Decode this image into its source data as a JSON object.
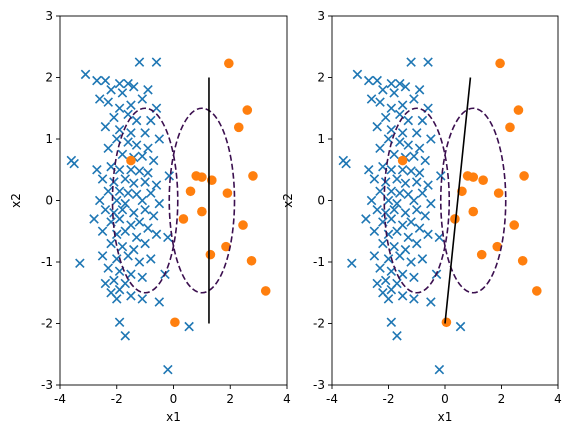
{
  "chart_data": [
    {
      "type": "scatter",
      "xlabel": "x1",
      "ylabel": "x2",
      "xlim": [
        -4,
        4
      ],
      "ylim": [
        -3,
        3
      ],
      "xticks": [
        "-4",
        "-2",
        "0",
        "2",
        "4"
      ],
      "yticks": [
        "-3",
        "-2",
        "-1",
        "0",
        "1",
        "2",
        "3"
      ],
      "grid": false,
      "colors": {
        "class_x": "#1f77b4",
        "class_o": "#ff7f0e",
        "contour": "#3b0f4f",
        "boundary": "#000000"
      },
      "series": [
        {
          "marker": "x",
          "color": "#1f77b4",
          "points": [
            [
              -3.1,
              2.05
            ],
            [
              -1.2,
              2.25
            ],
            [
              -0.6,
              2.25
            ],
            [
              -2.7,
              1.95
            ],
            [
              -2.4,
              1.95
            ],
            [
              -1.9,
              1.9
            ],
            [
              -1.6,
              1.9
            ],
            [
              -1.4,
              1.85
            ],
            [
              -2.2,
              1.8
            ],
            [
              -1.8,
              1.75
            ],
            [
              -0.9,
              1.8
            ],
            [
              -2.6,
              1.65
            ],
            [
              -2.3,
              1.6
            ],
            [
              -1.1,
              1.65
            ],
            [
              -1.9,
              1.5
            ],
            [
              -1.5,
              1.55
            ],
            [
              -0.6,
              1.5
            ],
            [
              -2.1,
              1.35
            ],
            [
              -1.6,
              1.4
            ],
            [
              -1.3,
              1.3
            ],
            [
              -0.8,
              1.3
            ],
            [
              -2.4,
              1.2
            ],
            [
              -1.9,
              1.15
            ],
            [
              -1.5,
              1.1
            ],
            [
              -1.0,
              1.1
            ],
            [
              -0.5,
              1.0
            ],
            [
              -2.0,
              1.0
            ],
            [
              -1.6,
              0.95
            ],
            [
              -1.3,
              0.9
            ],
            [
              -2.3,
              0.85
            ],
            [
              -0.9,
              0.85
            ],
            [
              -3.6,
              0.65
            ],
            [
              -3.5,
              0.6
            ],
            [
              -1.8,
              0.75
            ],
            [
              -1.4,
              0.7
            ],
            [
              -1.1,
              0.72
            ],
            [
              -0.7,
              0.65
            ],
            [
              -2.7,
              0.5
            ],
            [
              -2.2,
              0.55
            ],
            [
              -1.9,
              0.5
            ],
            [
              -1.5,
              0.5
            ],
            [
              -1.2,
              0.48
            ],
            [
              -0.9,
              0.45
            ],
            [
              -2.5,
              0.35
            ],
            [
              -2.1,
              0.3
            ],
            [
              -1.7,
              0.35
            ],
            [
              -1.4,
              0.28
            ],
            [
              -1.0,
              0.3
            ],
            [
              -0.6,
              0.25
            ],
            [
              -2.3,
              0.15
            ],
            [
              -1.9,
              0.15
            ],
            [
              -1.6,
              0.12
            ],
            [
              -1.3,
              0.1
            ],
            [
              -0.8,
              0.12
            ],
            [
              -2.6,
              0.0
            ],
            [
              -2.0,
              0.0
            ],
            [
              -1.7,
              -0.05
            ],
            [
              -1.1,
              0.0
            ],
            [
              -0.5,
              -0.05
            ],
            [
              -2.4,
              -0.15
            ],
            [
              -2.1,
              -0.2
            ],
            [
              -1.8,
              -0.15
            ],
            [
              -1.4,
              -0.2
            ],
            [
              -1.0,
              -0.15
            ],
            [
              -0.7,
              -0.25
            ],
            [
              -2.8,
              -0.3
            ],
            [
              -2.2,
              -0.35
            ],
            [
              -1.9,
              -0.3
            ],
            [
              -1.5,
              -0.4
            ],
            [
              -1.2,
              -0.35
            ],
            [
              -0.9,
              -0.45
            ],
            [
              -2.5,
              -0.5
            ],
            [
              -2.0,
              -0.55
            ],
            [
              -1.7,
              -0.5
            ],
            [
              -1.3,
              -0.6
            ],
            [
              -0.6,
              -0.55
            ],
            [
              -2.2,
              -0.7
            ],
            [
              -1.8,
              -0.75
            ],
            [
              -1.4,
              -0.8
            ],
            [
              -1.0,
              -0.7
            ],
            [
              -2.5,
              -0.9
            ],
            [
              -2.0,
              -0.95
            ],
            [
              -1.6,
              -0.9
            ],
            [
              -1.2,
              -1.0
            ],
            [
              -0.8,
              -0.95
            ],
            [
              -3.3,
              -1.02
            ],
            [
              -2.3,
              -1.1
            ],
            [
              -1.9,
              -1.15
            ],
            [
              -1.5,
              -1.2
            ],
            [
              -1.1,
              -1.25
            ],
            [
              -2.1,
              -1.3
            ],
            [
              -1.7,
              -1.35
            ],
            [
              -2.4,
              -1.35
            ],
            [
              -2.2,
              -1.5
            ],
            [
              -1.9,
              -1.45
            ],
            [
              -2.0,
              -1.6
            ],
            [
              -1.5,
              -1.55
            ],
            [
              -1.1,
              -1.6
            ],
            [
              -0.5,
              -1.65
            ],
            [
              -1.9,
              -1.98
            ],
            [
              -1.7,
              -2.2
            ],
            [
              0.55,
              -2.05
            ],
            [
              -0.2,
              -2.75
            ],
            [
              -0.3,
              -1.2
            ],
            [
              -0.2,
              -0.6
            ],
            [
              -0.15,
              0.4
            ]
          ]
        },
        {
          "marker": "o",
          "color": "#ff7f0e",
          "points": [
            [
              1.95,
              2.23
            ],
            [
              2.6,
              1.47
            ],
            [
              2.3,
              1.19
            ],
            [
              -1.5,
              0.65
            ],
            [
              0.8,
              0.4
            ],
            [
              1.0,
              0.38
            ],
            [
              1.35,
              0.33
            ],
            [
              2.8,
              0.4
            ],
            [
              0.6,
              0.15
            ],
            [
              1.9,
              0.12
            ],
            [
              1.0,
              -0.18
            ],
            [
              2.45,
              -0.4
            ],
            [
              0.35,
              -0.3
            ],
            [
              1.85,
              -0.75
            ],
            [
              1.3,
              -0.88
            ],
            [
              2.75,
              -0.98
            ],
            [
              3.25,
              -1.47
            ],
            [
              0.05,
              -1.98
            ]
          ]
        }
      ],
      "contours": [
        {
          "center": [
            -1.0,
            0.0
          ],
          "rx": 1.15,
          "ry": 1.5
        },
        {
          "center": [
            1.0,
            0.0
          ],
          "rx": 1.15,
          "ry": 1.5
        }
      ],
      "boundary": [
        [
          1.25,
          2.0
        ],
        [
          1.25,
          -2.0
        ]
      ]
    },
    {
      "type": "scatter",
      "xlabel": "x1",
      "ylabel": "x2",
      "xlim": [
        -4,
        4
      ],
      "ylim": [
        -3,
        3
      ],
      "xticks": [
        "-4",
        "-2",
        "0",
        "2",
        "4"
      ],
      "yticks": [
        "-3",
        "-2",
        "-1",
        "0",
        "1",
        "2",
        "3"
      ],
      "grid": false,
      "colors": {
        "class_x": "#1f77b4",
        "class_o": "#ff7f0e",
        "contour": "#3b0f4f",
        "boundary": "#000000"
      },
      "series": [
        {
          "marker": "x",
          "color": "#1f77b4",
          "points": [
            [
              -3.1,
              2.05
            ],
            [
              -1.2,
              2.25
            ],
            [
              -0.6,
              2.25
            ],
            [
              -2.7,
              1.95
            ],
            [
              -2.4,
              1.95
            ],
            [
              -1.9,
              1.9
            ],
            [
              -1.6,
              1.9
            ],
            [
              -1.4,
              1.85
            ],
            [
              -2.2,
              1.8
            ],
            [
              -1.8,
              1.75
            ],
            [
              -0.9,
              1.8
            ],
            [
              -2.6,
              1.65
            ],
            [
              -2.3,
              1.6
            ],
            [
              -1.1,
              1.65
            ],
            [
              -1.9,
              1.5
            ],
            [
              -1.5,
              1.55
            ],
            [
              -0.6,
              1.5
            ],
            [
              -2.1,
              1.35
            ],
            [
              -1.6,
              1.4
            ],
            [
              -1.3,
              1.3
            ],
            [
              -0.8,
              1.3
            ],
            [
              -2.4,
              1.2
            ],
            [
              -1.9,
              1.15
            ],
            [
              -1.5,
              1.1
            ],
            [
              -1.0,
              1.1
            ],
            [
              -0.5,
              1.0
            ],
            [
              -2.0,
              1.0
            ],
            [
              -1.6,
              0.95
            ],
            [
              -1.3,
              0.9
            ],
            [
              -2.3,
              0.85
            ],
            [
              -0.9,
              0.85
            ],
            [
              -3.6,
              0.65
            ],
            [
              -3.5,
              0.6
            ],
            [
              -1.8,
              0.75
            ],
            [
              -1.4,
              0.7
            ],
            [
              -1.1,
              0.72
            ],
            [
              -0.7,
              0.65
            ],
            [
              -2.7,
              0.5
            ],
            [
              -2.2,
              0.55
            ],
            [
              -1.9,
              0.5
            ],
            [
              -1.5,
              0.5
            ],
            [
              -1.2,
              0.48
            ],
            [
              -0.9,
              0.45
            ],
            [
              -2.5,
              0.35
            ],
            [
              -2.1,
              0.3
            ],
            [
              -1.7,
              0.35
            ],
            [
              -1.4,
              0.28
            ],
            [
              -1.0,
              0.3
            ],
            [
              -0.6,
              0.25
            ],
            [
              -2.3,
              0.15
            ],
            [
              -1.9,
              0.15
            ],
            [
              -1.6,
              0.12
            ],
            [
              -1.3,
              0.1
            ],
            [
              -0.8,
              0.12
            ],
            [
              -2.6,
              0.0
            ],
            [
              -2.0,
              0.0
            ],
            [
              -1.7,
              -0.05
            ],
            [
              -1.1,
              0.0
            ],
            [
              -0.5,
              -0.05
            ],
            [
              -2.4,
              -0.15
            ],
            [
              -2.1,
              -0.2
            ],
            [
              -1.8,
              -0.15
            ],
            [
              -1.4,
              -0.2
            ],
            [
              -1.0,
              -0.15
            ],
            [
              -0.7,
              -0.25
            ],
            [
              -2.8,
              -0.3
            ],
            [
              -2.2,
              -0.35
            ],
            [
              -1.9,
              -0.3
            ],
            [
              -1.5,
              -0.4
            ],
            [
              -1.2,
              -0.35
            ],
            [
              -0.9,
              -0.45
            ],
            [
              -2.5,
              -0.5
            ],
            [
              -2.0,
              -0.55
            ],
            [
              -1.7,
              -0.5
            ],
            [
              -1.3,
              -0.6
            ],
            [
              -0.6,
              -0.55
            ],
            [
              -2.2,
              -0.7
            ],
            [
              -1.8,
              -0.75
            ],
            [
              -1.4,
              -0.8
            ],
            [
              -1.0,
              -0.7
            ],
            [
              -2.5,
              -0.9
            ],
            [
              -2.0,
              -0.95
            ],
            [
              -1.6,
              -0.9
            ],
            [
              -1.2,
              -1.0
            ],
            [
              -0.8,
              -0.95
            ],
            [
              -3.3,
              -1.02
            ],
            [
              -2.3,
              -1.1
            ],
            [
              -1.9,
              -1.15
            ],
            [
              -1.5,
              -1.2
            ],
            [
              -1.1,
              -1.25
            ],
            [
              -2.1,
              -1.3
            ],
            [
              -1.7,
              -1.35
            ],
            [
              -2.4,
              -1.35
            ],
            [
              -2.2,
              -1.5
            ],
            [
              -1.9,
              -1.45
            ],
            [
              -2.0,
              -1.6
            ],
            [
              -1.5,
              -1.55
            ],
            [
              -1.1,
              -1.6
            ],
            [
              -0.5,
              -1.65
            ],
            [
              -1.9,
              -1.98
            ],
            [
              -1.7,
              -2.2
            ],
            [
              0.55,
              -2.05
            ],
            [
              -0.2,
              -2.75
            ],
            [
              -0.3,
              -1.2
            ],
            [
              -0.2,
              -0.6
            ],
            [
              -0.15,
              0.4
            ]
          ]
        },
        {
          "marker": "o",
          "color": "#ff7f0e",
          "points": [
            [
              1.95,
              2.23
            ],
            [
              2.6,
              1.47
            ],
            [
              2.3,
              1.19
            ],
            [
              -1.5,
              0.65
            ],
            [
              0.8,
              0.4
            ],
            [
              1.0,
              0.38
            ],
            [
              1.35,
              0.33
            ],
            [
              2.8,
              0.4
            ],
            [
              0.6,
              0.15
            ],
            [
              1.9,
              0.12
            ],
            [
              1.0,
              -0.18
            ],
            [
              2.45,
              -0.4
            ],
            [
              0.35,
              -0.3
            ],
            [
              1.85,
              -0.75
            ],
            [
              1.3,
              -0.88
            ],
            [
              2.75,
              -0.98
            ],
            [
              3.25,
              -1.47
            ],
            [
              0.05,
              -1.98
            ]
          ]
        }
      ],
      "contours": [
        {
          "center": [
            -1.0,
            0.0
          ],
          "rx": 1.15,
          "ry": 1.5
        },
        {
          "center": [
            1.0,
            0.0
          ],
          "rx": 1.15,
          "ry": 1.5
        }
      ],
      "boundary": [
        [
          0.0,
          -2.0
        ],
        [
          0.9,
          2.0
        ]
      ]
    }
  ]
}
